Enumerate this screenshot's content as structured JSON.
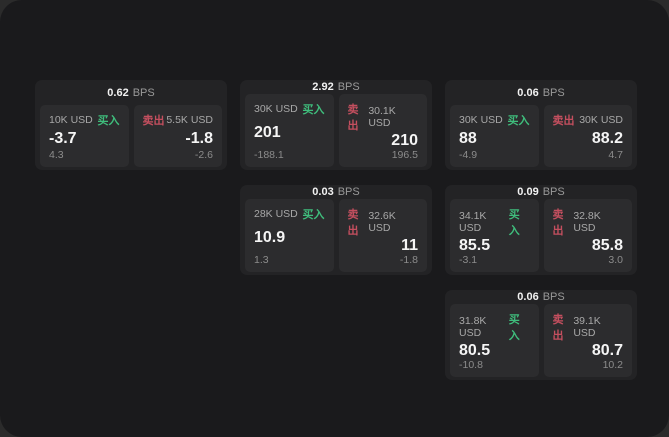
{
  "labels": {
    "bps": "BPS",
    "buy": "买入",
    "sell": "卖出"
  },
  "colors": {
    "window_bg": "#1a1a1c",
    "card_bg": "#232325",
    "panel_bg": "#2c2c2e",
    "buy_green": "#3fbd7c",
    "sell_red": "#c44f5f"
  },
  "cards": [
    {
      "row": 1,
      "col": 1,
      "bps": "0.62",
      "buy": {
        "size": "10K USD",
        "value": "-3.7",
        "sub": "4.3"
      },
      "sell": {
        "size": "5.5K USD",
        "value": "-1.8",
        "sub": "-2.6"
      }
    },
    {
      "row": 1,
      "col": 2,
      "bps": "2.92",
      "buy": {
        "size": "30K USD",
        "value": "201",
        "sub": "-188.1"
      },
      "sell": {
        "size": "30.1K USD",
        "value": "210",
        "sub": "196.5"
      }
    },
    {
      "row": 1,
      "col": 3,
      "bps": "0.06",
      "buy": {
        "size": "30K USD",
        "value": "88",
        "sub": "-4.9"
      },
      "sell": {
        "size": "30K USD",
        "value": "88.2",
        "sub": "4.7"
      }
    },
    {
      "row": 2,
      "col": 2,
      "bps": "0.03",
      "buy": {
        "size": "28K USD",
        "value": "10.9",
        "sub": "1.3"
      },
      "sell": {
        "size": "32.6K USD",
        "value": "11",
        "sub": "-1.8"
      }
    },
    {
      "row": 2,
      "col": 3,
      "bps": "0.09",
      "buy": {
        "size": "34.1K USD",
        "value": "85.5",
        "sub": "-3.1"
      },
      "sell": {
        "size": "32.8K USD",
        "value": "85.8",
        "sub": "3.0"
      }
    },
    {
      "row": 3,
      "col": 3,
      "bps": "0.06",
      "buy": {
        "size": "31.8K USD",
        "value": "80.5",
        "sub": "-10.8"
      },
      "sell": {
        "size": "39.1K USD",
        "value": "80.7",
        "sub": "10.2"
      }
    }
  ]
}
